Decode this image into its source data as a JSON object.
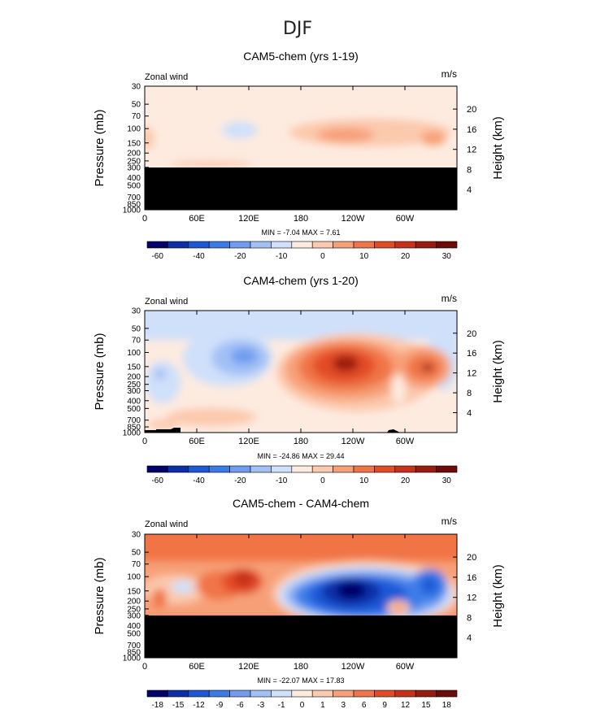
{
  "figure": {
    "title": "DJF"
  },
  "chart_data": [
    {
      "type": "heatmap",
      "title": "CAM5-chem (yrs 1-19)",
      "left_label": "Zonal wind",
      "right_label": "m/s",
      "ylabel": "Pressure (mb)",
      "ylabel_right": "Height (km)",
      "x_ticks": [
        "0",
        "60E",
        "120E",
        "180",
        "120W",
        "60W"
      ],
      "pressure_ticks": [
        "30",
        "50",
        "70",
        "100",
        "150",
        "200",
        "250",
        "300",
        "400",
        "500",
        "700",
        "850",
        "1000"
      ],
      "height_ticks": [
        "20",
        "16",
        "12",
        "8",
        "4"
      ],
      "stats_text": "MIN = -7.04 MAX = 7.61",
      "min": -7.04,
      "max": 7.61,
      "colorbar_labels": [
        "-60",
        "-40",
        "-20",
        "-10",
        "0",
        "10",
        "20",
        "30"
      ],
      "masked_below_mb": 300
    },
    {
      "type": "heatmap",
      "title": "CAM4-chem (yrs 1-20)",
      "left_label": "Zonal wind",
      "right_label": "m/s",
      "ylabel": "Pressure (mb)",
      "ylabel_right": "Height (km)",
      "x_ticks": [
        "0",
        "60E",
        "120E",
        "180",
        "120W",
        "60W"
      ],
      "pressure_ticks": [
        "30",
        "50",
        "70",
        "100",
        "150",
        "200",
        "250",
        "300",
        "400",
        "500",
        "700",
        "850",
        "1000"
      ],
      "height_ticks": [
        "20",
        "16",
        "12",
        "8",
        "4"
      ],
      "stats_text": "MIN = -24.86 MAX = 29.44",
      "min": -24.86,
      "max": 29.44,
      "colorbar_labels": [
        "-60",
        "-40",
        "-20",
        "-10",
        "0",
        "10",
        "20",
        "30"
      ]
    },
    {
      "type": "heatmap",
      "title": "CAM5-chem - CAM4-chem",
      "left_label": "Zonal wind",
      "right_label": "m/s",
      "ylabel": "Pressure (mb)",
      "ylabel_right": "Height (km)",
      "x_ticks": [
        "0",
        "60E",
        "120E",
        "180",
        "120W",
        "60W"
      ],
      "pressure_ticks": [
        "30",
        "50",
        "70",
        "100",
        "150",
        "200",
        "250",
        "300",
        "400",
        "500",
        "700",
        "850",
        "1000"
      ],
      "height_ticks": [
        "20",
        "16",
        "12",
        "8",
        "4"
      ],
      "stats_text": "MIN = -22.07 MAX = 17.83",
      "min": -22.07,
      "max": 17.83,
      "colorbar_labels": [
        "-18",
        "-15",
        "-12",
        "-9",
        "-6",
        "-3",
        "-1",
        "0",
        "1",
        "3",
        "6",
        "9",
        "12",
        "15",
        "18"
      ],
      "masked_below_mb": 300
    }
  ],
  "colors": {
    "palette": [
      "#04006b",
      "#0b2fa8",
      "#1d58d6",
      "#3b7be8",
      "#6f9cf0",
      "#a3c0f5",
      "#cfe0fa",
      "#fdebe0",
      "#fbc9ad",
      "#f7a078",
      "#f07446",
      "#e24b25",
      "#c8301a",
      "#9c1b0f",
      "#6e0a07"
    ],
    "mask": "#000000"
  }
}
